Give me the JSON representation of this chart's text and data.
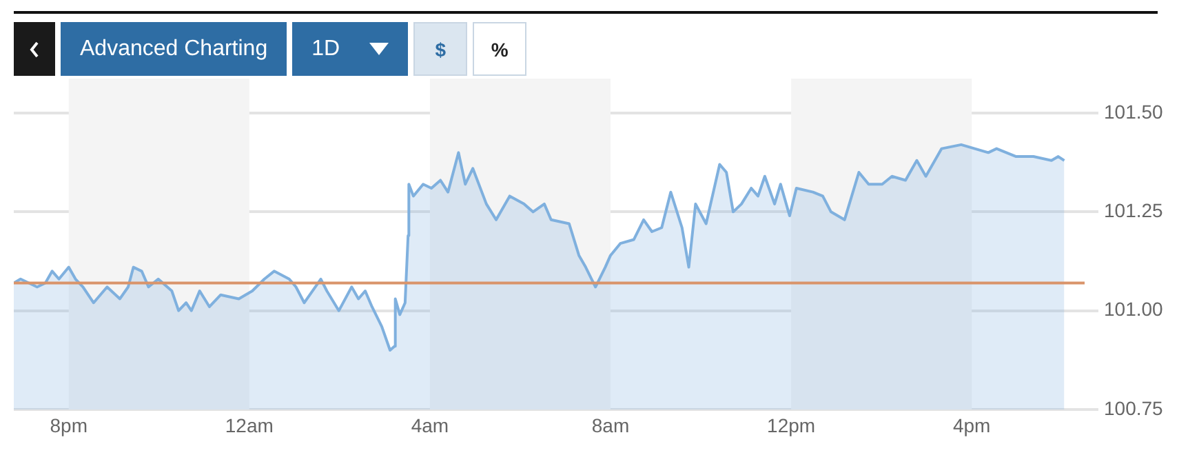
{
  "chart_data": {
    "type": "area",
    "x": [
      "--01-01T18:47",
      "--01-01T18:56",
      "--01-01T19:18",
      "--01-01T19:29",
      "--01-01T19:38",
      "--01-01T19:47",
      "--01-01T20:00",
      "--01-01T20:09",
      "--01-01T20:19",
      "--01-01T20:33",
      "--01-01T20:51",
      "--01-01T21:08",
      "--01-01T21:19",
      "--01-01T21:26",
      "--01-01T21:37",
      "--01-01T21:46",
      "--01-01T21:59",
      "--01-01T22:17",
      "--01-01T22:26",
      "--01-01T22:36",
      "--01-01T22:43",
      "--01-01T22:54",
      "--01-01T23:07",
      "--01-01T23:22",
      "--01-01T23:46",
      "--01-02T00:04",
      "--01-02T00:20",
      "--01-02T00:33",
      "--01-02T00:53",
      "--01-02T01:02",
      "--01-02T01:13",
      "--01-02T01:35",
      "--01-02T01:43",
      "--01-02T01:59",
      "--01-02T02:16",
      "--01-02T02:25",
      "--01-02T02:34",
      "--01-02T02:43",
      "--01-02T02:56",
      "--01-02T03:07",
      "--01-02T03:13",
      "--01-02T03:14",
      "--01-02T03:20",
      "--01-02T03:27",
      "--01-02T03:31",
      "--01-02T03:32",
      "--01-02T03:38",
      "--01-02T03:51",
      "--01-02T04:02",
      "--01-02T04:14",
      "--01-02T04:24",
      "--01-02T04:38",
      "--01-02T04:47",
      "--01-02T04:57",
      "--01-02T05:15",
      "--01-02T05:28",
      "--01-02T05:46",
      "--01-02T06:05",
      "--01-02T06:17",
      "--01-02T06:32",
      "--01-02T06:41",
      "--01-02T07:05",
      "--01-02T07:18",
      "--01-02T07:27",
      "--01-02T07:40",
      "--01-02T07:53",
      "--01-02T08:00",
      "--01-02T08:13",
      "--01-02T08:31",
      "--01-02T08:44",
      "--01-02T08:55",
      "--01-02T09:08",
      "--01-02T09:20",
      "--01-02T09:35",
      "--01-02T09:44",
      "--01-02T09:53",
      "--01-02T10:07",
      "--01-02T10:25",
      "--01-02T10:34",
      "--01-02T10:43",
      "--01-02T10:54",
      "--01-02T11:07",
      "--01-02T11:16",
      "--01-02T11:25",
      "--01-02T11:38",
      "--01-02T11:46",
      "--01-02T11:58",
      "--01-02T12:07",
      "--01-02T12:29",
      "--01-02T12:42",
      "--01-02T12:53",
      "--01-02T13:11",
      "--01-02T13:30",
      "--01-02T13:43",
      "--01-02T14:01",
      "--01-02T14:14",
      "--01-02T14:32",
      "--01-02T14:47",
      "--01-02T14:59",
      "--01-02T15:20",
      "--01-02T15:46",
      "--01-02T16:04",
      "--01-02T16:22",
      "--01-02T16:33",
      "--01-02T16:59",
      "--01-02T17:22",
      "--01-02T17:46",
      "--01-02T17:55",
      "--01-02T18:03"
    ],
    "series": [
      {
        "color": "#7fb0de",
        "values": [
          101.07,
          101.08,
          101.06,
          101.07,
          101.1,
          101.08,
          101.11,
          101.08,
          101.06,
          101.02,
          101.06,
          101.03,
          101.06,
          101.11,
          101.1,
          101.06,
          101.08,
          101.05,
          101,
          101.02,
          101,
          101.05,
          101.01,
          101.04,
          101.03,
          101.05,
          101.08,
          101.1,
          101.08,
          101.06,
          101.02,
          101.08,
          101.05,
          101,
          101.06,
          101.03,
          101.05,
          101.01,
          100.96,
          100.9,
          100.91,
          101.03,
          100.99,
          101.02,
          101.19,
          101.32,
          101.29,
          101.32,
          101.31,
          101.33,
          101.3,
          101.4,
          101.32,
          101.36,
          101.27,
          101.23,
          101.29,
          101.27,
          101.25,
          101.27,
          101.23,
          101.22,
          101.14,
          101.11,
          101.06,
          101.11,
          101.14,
          101.17,
          101.18,
          101.23,
          101.2,
          101.21,
          101.3,
          101.21,
          101.11,
          101.27,
          101.22,
          101.37,
          101.35,
          101.25,
          101.27,
          101.31,
          101.29,
          101.34,
          101.27,
          101.32,
          101.24,
          101.31,
          101.3,
          101.29,
          101.25,
          101.23,
          101.35,
          101.32,
          101.32,
          101.34,
          101.33,
          101.38,
          101.34,
          101.41,
          101.42,
          101.41,
          101.4,
          101.41,
          101.39,
          101.39,
          101.38,
          101.39,
          101.38
        ]
      }
    ],
    "xlim": [
      "--01-01T18:47",
      "--01-02T18:30"
    ],
    "ylim": [
      100.75,
      101.5
    ],
    "xticks": [
      {
        "value": "--01-01T20:00",
        "label": "8pm"
      },
      {
        "value": "--01-02T00:00",
        "label": "12am"
      },
      {
        "value": "--01-02T04:00",
        "label": "4am"
      },
      {
        "value": "--01-02T08:00",
        "label": "8am"
      },
      {
        "value": "--01-02T12:00",
        "label": "12pm"
      },
      {
        "value": "--01-02T16:00",
        "label": "4pm"
      }
    ],
    "yticks": [
      {
        "value": 100.75,
        "label": "100.75"
      },
      {
        "value": 101,
        "label": "101.00"
      },
      {
        "value": 101.25,
        "label": "101.25"
      },
      {
        "value": 101.5,
        "label": "101.50"
      }
    ],
    "ref_lines": [
      {
        "axis": "y",
        "value": 101.07,
        "color": "#d9946a"
      }
    ],
    "bands": [
      {
        "axis": "x",
        "from": "--01-01T20:00",
        "to": "--01-02T00:00",
        "color": "#f4f4f4"
      },
      {
        "axis": "x",
        "from": "--01-02T04:00",
        "to": "--01-02T08:00",
        "color": "#f4f4f4"
      },
      {
        "axis": "x",
        "from": "--01-02T12:00",
        "to": "--01-02T16:00",
        "color": "#f4f4f4"
      }
    ],
    "grid": "y",
    "legend": false,
    "marker": "none",
    "annotations": [
      "Advanced Charting",
      "1D",
      "$",
      "%"
    ]
  }
}
